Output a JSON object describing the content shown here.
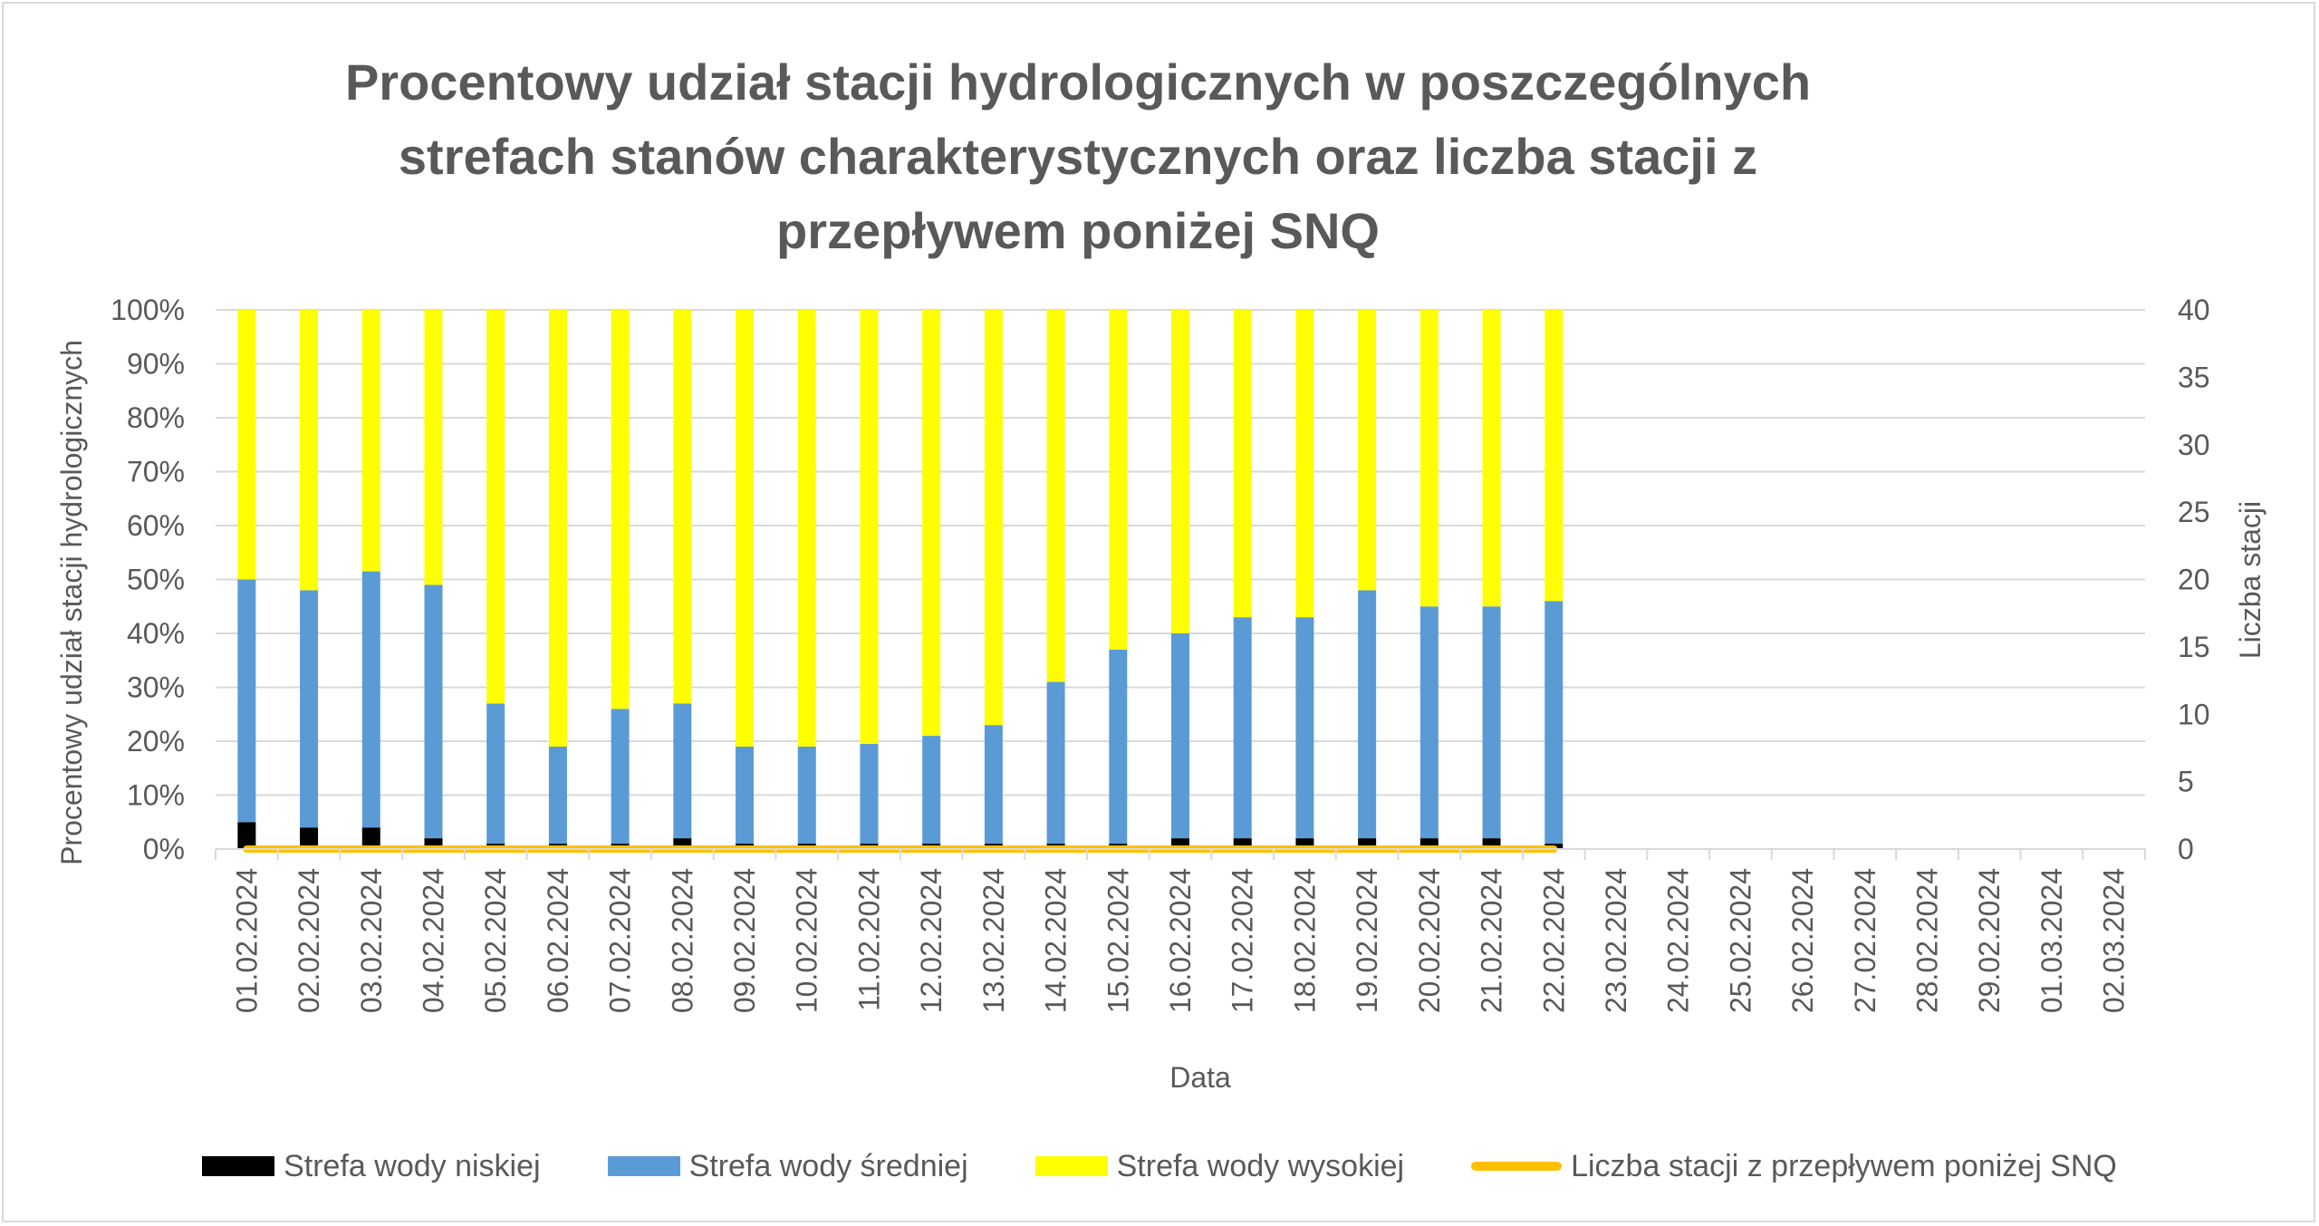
{
  "chart_data": {
    "type": "bar",
    "stacked": true,
    "title": "Procentowy udział stacji hydrologicznych w poszczególnych strefach stanów charakterystycznych oraz liczba stacji z przepływem poniżej SNQ",
    "xlabel": "Data",
    "ylabel": "Procentowy udział stacji hydrologicznych",
    "y2label": "Liczba stacji",
    "ylim": [
      0,
      100
    ],
    "y2lim": [
      0,
      40
    ],
    "y_ticks": [
      "0%",
      "10%",
      "20%",
      "30%",
      "40%",
      "50%",
      "60%",
      "70%",
      "80%",
      "90%",
      "100%"
    ],
    "y2_ticks": [
      "0",
      "5",
      "10",
      "15",
      "20",
      "25",
      "30",
      "35",
      "40"
    ],
    "grid": true,
    "legend_position": "bottom",
    "categories": [
      "01.02.2024",
      "02.02.2024",
      "03.02.2024",
      "04.02.2024",
      "05.02.2024",
      "06.02.2024",
      "07.02.2024",
      "08.02.2024",
      "09.02.2024",
      "10.02.2024",
      "11.02.2024",
      "12.02.2024",
      "13.02.2024",
      "14.02.2024",
      "15.02.2024",
      "16.02.2024",
      "17.02.2024",
      "18.02.2024",
      "19.02.2024",
      "20.02.2024",
      "21.02.2024",
      "22.02.2024",
      "23.02.2024",
      "24.02.2024",
      "25.02.2024",
      "26.02.2024",
      "27.02.2024",
      "28.02.2024",
      "29.02.2024",
      "01.03.2024",
      "02.03.2024"
    ],
    "series": [
      {
        "name": "Strefa wody niskiej",
        "color": "#000000",
        "axis": "left",
        "values": [
          5,
          4,
          4,
          2,
          1,
          1,
          1,
          2,
          1,
          1,
          1,
          1,
          1,
          1,
          1,
          2,
          2,
          2,
          2,
          2,
          2,
          1,
          null,
          null,
          null,
          null,
          null,
          null,
          null,
          null,
          null
        ]
      },
      {
        "name": "Strefa wody średniej",
        "color": "#5b9bd5",
        "axis": "left",
        "values": [
          45,
          44,
          47.5,
          47,
          26,
          18,
          25,
          25,
          18,
          18,
          18.5,
          20,
          22,
          30,
          36,
          38,
          41,
          41,
          46,
          43,
          43,
          45,
          null,
          null,
          null,
          null,
          null,
          null,
          null,
          null,
          null
        ]
      },
      {
        "name": "Strefa wody wysokiej",
        "color": "#ffff00",
        "axis": "left",
        "values": [
          50,
          52,
          48.5,
          51,
          73,
          81,
          74,
          73,
          81,
          81,
          80.5,
          79,
          77,
          69,
          63,
          60,
          57,
          57,
          52,
          55,
          55,
          54,
          null,
          null,
          null,
          null,
          null,
          null,
          null,
          null,
          null
        ]
      },
      {
        "name": "Liczba stacji z przepływem poniżej SNQ",
        "color": "#ffc000",
        "axis": "right",
        "type": "line",
        "values": [
          0,
          0,
          0,
          0,
          0,
          0,
          0,
          0,
          0,
          0,
          0,
          0,
          0,
          0,
          0,
          0,
          0,
          0,
          0,
          0,
          0,
          0,
          null,
          null,
          null,
          null,
          null,
          null,
          null,
          null,
          null
        ]
      }
    ]
  }
}
